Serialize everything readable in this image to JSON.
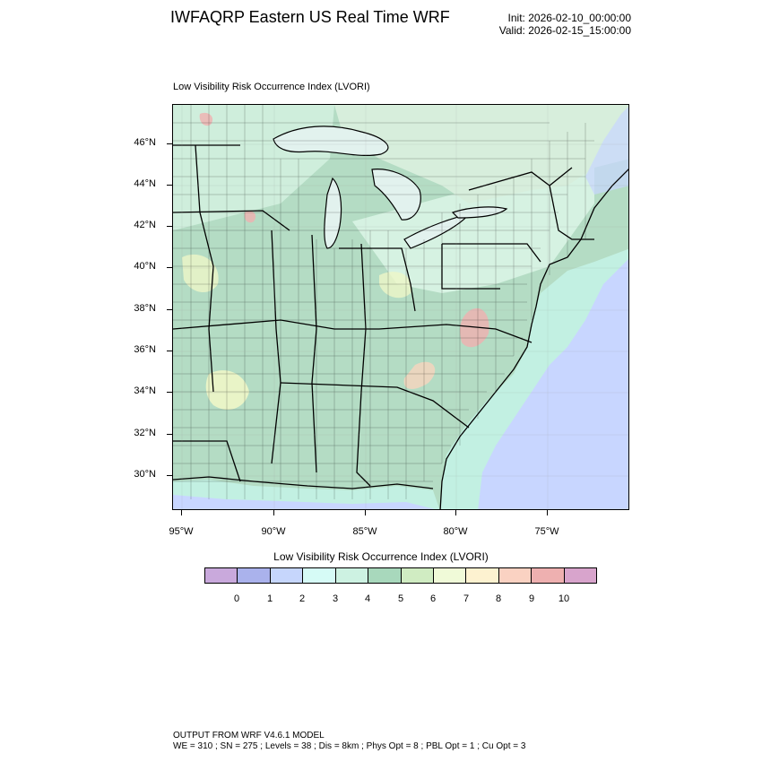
{
  "header": {
    "title": "IWFAQRP Eastern US Real Time WRF",
    "init": "Init: 2026-02-10_00:00:00",
    "valid": "Valid: 2026-02-15_15:00:00"
  },
  "panel": {
    "title": "Low Visibility Risk Occurrence Index   (LVORI)"
  },
  "map": {
    "lat_labels": [
      "46°N",
      "44°N",
      "42°N",
      "40°N",
      "38°N",
      "36°N",
      "34°N",
      "32°N",
      "30°N"
    ],
    "lon_labels": [
      "95°W",
      "90°W",
      "85°W",
      "80°W",
      "75°W"
    ],
    "colors": {
      "ocean": "#c8d6ff",
      "coastal_water": "#c2f0e2",
      "land_base": "#b4dcc4",
      "land_light": "#d6f2e2",
      "yellow": "#eef6c8",
      "orange": "#f7d4be",
      "red": "#f0b0b0",
      "lakes": "#e2f2ee",
      "canada": "#d7eedc"
    }
  },
  "colorbar": {
    "title": "Low Visibility Risk Occurrence Index  (LVORI)",
    "labels": [
      "0",
      "1",
      "2",
      "3",
      "4",
      "5",
      "6",
      "7",
      "8",
      "9",
      "10"
    ],
    "colors": [
      "#c9a9dc",
      "#aab2ec",
      "#c6d6fc",
      "#d6fbf6",
      "#cdf2e2",
      "#a8d8bc",
      "#d0ecc2",
      "#f0fad8",
      "#fdf2d0",
      "#fad2c2",
      "#eeb0b0",
      "#d8a4cc"
    ]
  },
  "footer": {
    "line1": "OUTPUT FROM WRF V4.6.1 MODEL",
    "line2": "WE = 310 ; SN = 275 ; Levels = 38 ; Dis = 8km ; Phys Opt = 8 ; PBL Opt = 1 ; Cu Opt = 3"
  }
}
